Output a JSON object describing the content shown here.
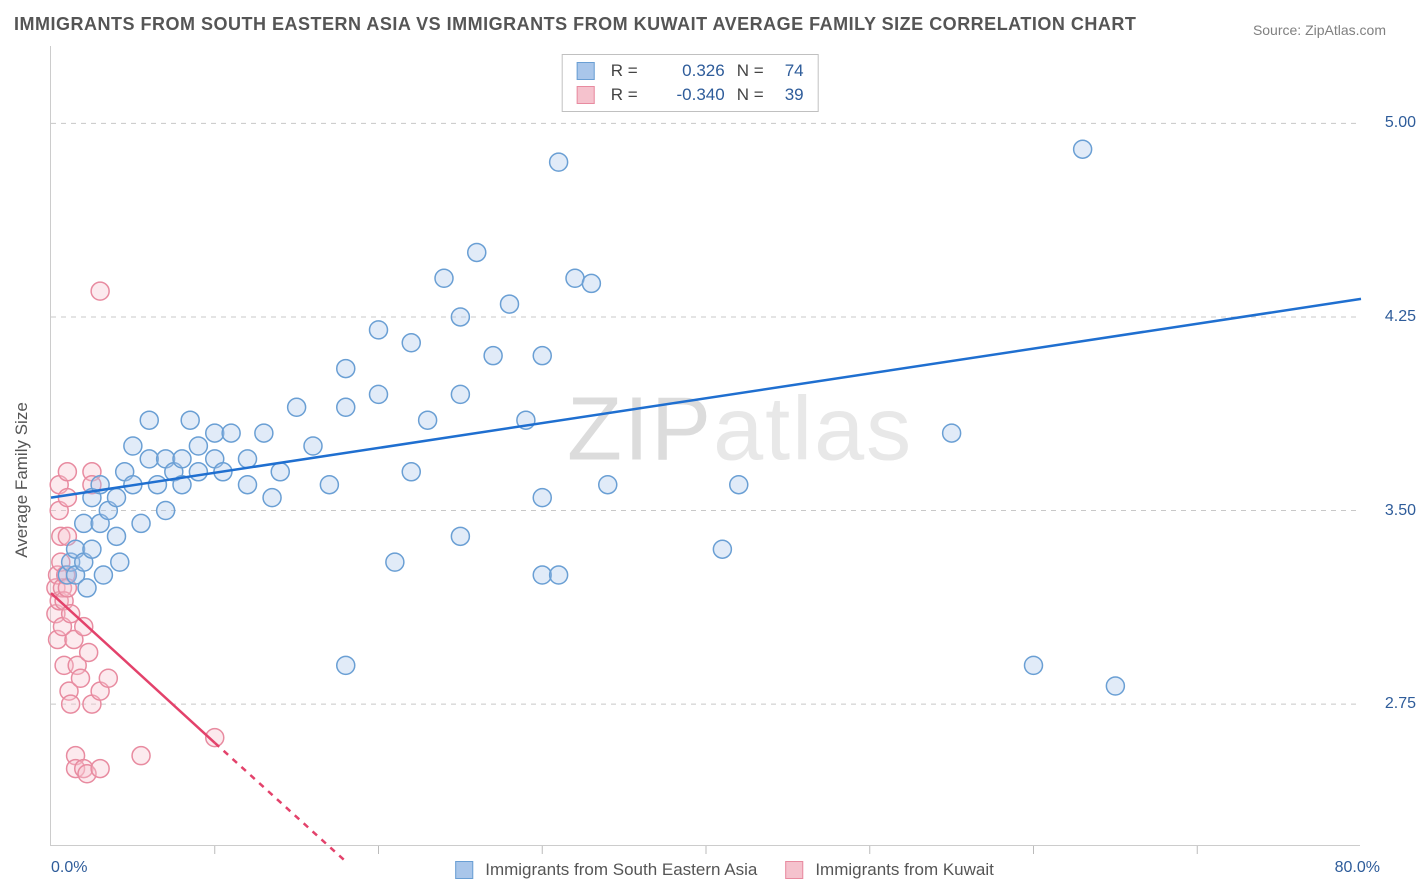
{
  "title": "IMMIGRANTS FROM SOUTH EASTERN ASIA VS IMMIGRANTS FROM KUWAIT AVERAGE FAMILY SIZE CORRELATION CHART",
  "source_label": "Source: ZipAtlas.com",
  "y_axis_title": "Average Family Size",
  "watermark": "ZIPatlas",
  "chart": {
    "type": "scatter",
    "background_color": "#ffffff",
    "grid_color": "#c8c8c8",
    "grid_style": "dashed",
    "axis_color": "#cccccc",
    "tick_color": "#bbbbbb",
    "label_color": "#2e5c9a",
    "title_color": "#555555",
    "title_fontsize": 18,
    "label_fontsize": 16,
    "axis_title_fontsize": 17,
    "marker_radius": 9,
    "marker_fill_opacity": 0.35,
    "marker_stroke_width": 1.5,
    "trend_line_width": 2.5,
    "trend_solid_dash": "none",
    "trend_extrapolate_dash": "6,6",
    "xlim": [
      0,
      80
    ],
    "ylim": [
      2.2,
      5.3
    ],
    "x_ticks_pct": [
      0.0,
      80.0
    ],
    "x_minor_ticks": [
      10,
      20,
      30,
      40,
      50,
      60,
      70
    ],
    "y_ticks": [
      2.75,
      3.5,
      4.25,
      5.0
    ],
    "x_tick_labels": [
      "0.0%",
      "80.0%"
    ],
    "y_tick_labels": [
      "2.75",
      "3.50",
      "4.25",
      "5.00"
    ]
  },
  "series": {
    "sea": {
      "label": "Immigrants from South Eastern Asia",
      "color_fill": "#a9c6ea",
      "color_stroke": "#6a9fd4",
      "trend_color": "#1f6fd0",
      "R": "0.326",
      "N": "74",
      "trend": {
        "x1": 0,
        "y1": 3.55,
        "x2": 80,
        "y2": 4.32
      },
      "points": [
        [
          1.0,
          3.25
        ],
        [
          1.2,
          3.3
        ],
        [
          1.5,
          3.35
        ],
        [
          1.5,
          3.25
        ],
        [
          2.0,
          3.3
        ],
        [
          2.0,
          3.45
        ],
        [
          2.2,
          3.2
        ],
        [
          2.5,
          3.55
        ],
        [
          2.5,
          3.35
        ],
        [
          3.0,
          3.6
        ],
        [
          3.0,
          3.45
        ],
        [
          3.2,
          3.25
        ],
        [
          3.5,
          3.5
        ],
        [
          4.0,
          3.4
        ],
        [
          4.0,
          3.55
        ],
        [
          4.2,
          3.3
        ],
        [
          4.5,
          3.65
        ],
        [
          5.0,
          3.6
        ],
        [
          5.0,
          3.75
        ],
        [
          5.5,
          3.45
        ],
        [
          6.0,
          3.7
        ],
        [
          6.0,
          3.85
        ],
        [
          6.5,
          3.6
        ],
        [
          7.0,
          3.7
        ],
        [
          7.0,
          3.5
        ],
        [
          7.5,
          3.65
        ],
        [
          8.0,
          3.7
        ],
        [
          8.0,
          3.6
        ],
        [
          8.5,
          3.85
        ],
        [
          9.0,
          3.75
        ],
        [
          9.0,
          3.65
        ],
        [
          10.0,
          3.7
        ],
        [
          10.0,
          3.8
        ],
        [
          10.5,
          3.65
        ],
        [
          11.0,
          3.8
        ],
        [
          12.0,
          3.7
        ],
        [
          12.0,
          3.6
        ],
        [
          13.0,
          3.8
        ],
        [
          13.5,
          3.55
        ],
        [
          14.0,
          3.65
        ],
        [
          15.0,
          3.9
        ],
        [
          16.0,
          3.75
        ],
        [
          17.0,
          3.6
        ],
        [
          18.0,
          4.05
        ],
        [
          18.0,
          3.9
        ],
        [
          18.0,
          2.9
        ],
        [
          20.0,
          4.2
        ],
        [
          20.0,
          3.95
        ],
        [
          21.0,
          3.3
        ],
        [
          22.0,
          4.15
        ],
        [
          22.0,
          3.65
        ],
        [
          23.0,
          3.85
        ],
        [
          24.0,
          4.4
        ],
        [
          25.0,
          4.25
        ],
        [
          25.0,
          3.95
        ],
        [
          25.0,
          3.4
        ],
        [
          26.0,
          4.5
        ],
        [
          27.0,
          4.1
        ],
        [
          28.0,
          4.3
        ],
        [
          29.0,
          3.85
        ],
        [
          30.0,
          4.1
        ],
        [
          31.0,
          4.85
        ],
        [
          32.0,
          4.4
        ],
        [
          30.0,
          3.55
        ],
        [
          30.0,
          3.25
        ],
        [
          31.0,
          3.25
        ],
        [
          33.0,
          4.38
        ],
        [
          34.0,
          3.6
        ],
        [
          41.0,
          3.35
        ],
        [
          42.0,
          3.6
        ],
        [
          55.0,
          3.8
        ],
        [
          60.0,
          2.9
        ],
        [
          63.0,
          4.9
        ],
        [
          65.0,
          2.82
        ]
      ]
    },
    "kuwait": {
      "label": "Immigrants from Kuwait",
      "color_fill": "#f5c2cd",
      "color_stroke": "#e88ba0",
      "trend_color": "#e3426b",
      "R": "-0.340",
      "N": "39",
      "trend_solid": {
        "x1": 0,
        "y1": 3.18,
        "x2": 10,
        "y2": 2.6
      },
      "trend_dash": {
        "x1": 10,
        "y1": 2.6,
        "x2": 18,
        "y2": 2.14
      },
      "points": [
        [
          0.3,
          3.2
        ],
        [
          0.3,
          3.1
        ],
        [
          0.4,
          3.25
        ],
        [
          0.4,
          3.0
        ],
        [
          0.5,
          3.15
        ],
        [
          0.5,
          3.5
        ],
        [
          0.5,
          3.6
        ],
        [
          0.6,
          3.3
        ],
        [
          0.6,
          3.4
        ],
        [
          0.7,
          3.05
        ],
        [
          0.7,
          3.2
        ],
        [
          0.8,
          2.9
        ],
        [
          0.8,
          3.15
        ],
        [
          0.9,
          3.25
        ],
        [
          1.0,
          3.2
        ],
        [
          1.0,
          3.55
        ],
        [
          1.0,
          3.65
        ],
        [
          1.1,
          2.8
        ],
        [
          1.2,
          3.1
        ],
        [
          1.2,
          2.75
        ],
        [
          1.4,
          3.0
        ],
        [
          1.5,
          2.55
        ],
        [
          1.5,
          2.5
        ],
        [
          1.6,
          2.9
        ],
        [
          1.8,
          2.85
        ],
        [
          2.0,
          3.05
        ],
        [
          2.0,
          2.5
        ],
        [
          2.2,
          2.48
        ],
        [
          2.3,
          2.95
        ],
        [
          2.5,
          3.65
        ],
        [
          2.5,
          3.6
        ],
        [
          2.5,
          2.75
        ],
        [
          3.0,
          2.5
        ],
        [
          3.0,
          4.35
        ],
        [
          3.0,
          2.8
        ],
        [
          3.5,
          2.85
        ],
        [
          5.5,
          2.55
        ],
        [
          10.0,
          2.62
        ],
        [
          1.0,
          3.4
        ]
      ]
    }
  },
  "stats_labels": {
    "R_prefix": "R =",
    "N_prefix": "N ="
  }
}
